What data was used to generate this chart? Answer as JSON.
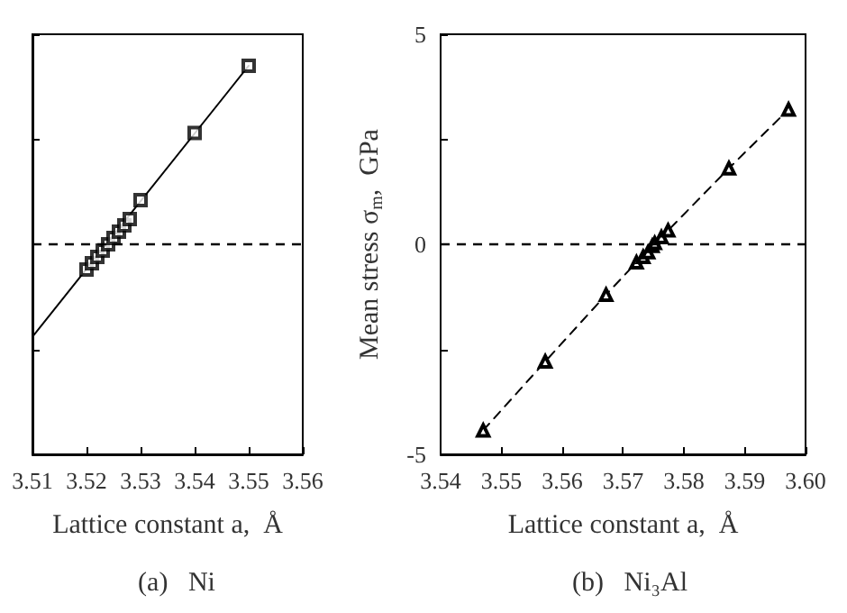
{
  "chart_data": [
    {
      "type": "line",
      "title": "(a)   Ni",
      "xlabel": "Lattice constant a,  Å",
      "xlim": [
        3.51,
        3.56
      ],
      "xticks": [
        3.51,
        3.52,
        3.53,
        3.54,
        3.55,
        3.56
      ],
      "ylim": [
        -5,
        5
      ],
      "yticks": [
        {
          "value": -5,
          "label": null
        },
        {
          "value": -2.5,
          "label": null
        },
        {
          "value": 0,
          "label": null
        },
        {
          "value": 2.5,
          "label": null
        },
        {
          "value": 5,
          "label": null
        }
      ],
      "tick_labels": "x",
      "grid": false,
      "ref_lines": [
        {
          "axis": "y",
          "value": 0,
          "line_style": "dashed",
          "color": "#000000"
        }
      ],
      "series": [
        {
          "type": "line",
          "marker": "none",
          "line_style": "solid",
          "color": "#000000",
          "x": [
            3.51,
            3.55
          ],
          "values": [
            -2.2,
            4.25
          ]
        },
        {
          "type": "scatter",
          "marker": "square",
          "color": "#000000",
          "x": [
            3.52,
            3.521,
            3.522,
            3.523,
            3.524,
            3.525,
            3.526,
            3.527,
            3.528,
            3.53,
            3.54,
            3.55
          ],
          "values": [
            -0.6,
            -0.45,
            -0.3,
            -0.15,
            0,
            0.15,
            0.3,
            0.45,
            0.6,
            1.05,
            2.65,
            4.25
          ]
        }
      ]
    },
    {
      "type": "line",
      "title": "(b)   Ni₃Al",
      "xlabel": "Lattice constant a,  Å",
      "ylabel": "Mean stress σ$_{m}$,  GPa",
      "xlim": [
        3.54,
        3.6
      ],
      "xticks": [
        3.54,
        3.55,
        3.56,
        3.57,
        3.58,
        3.59,
        {
          "value": 3.6,
          "label": "3.60"
        }
      ],
      "ylim": [
        -5,
        5
      ],
      "yticks": [
        -5,
        {
          "value": -2.5,
          "label": null
        },
        0,
        {
          "value": 2.5,
          "label": null
        },
        5
      ],
      "grid": false,
      "ref_lines": [
        {
          "axis": "y",
          "value": 0,
          "line_style": "dashed",
          "color": "#000000"
        }
      ],
      "series": [
        {
          "type": "line",
          "marker": "triangle",
          "line_style": "dashed",
          "color": "#000000",
          "x": [
            3.547,
            3.5572,
            3.5672,
            3.5722,
            3.5733,
            3.5741,
            3.5748,
            3.5752,
            3.5763,
            3.5774,
            3.5874,
            3.5972
          ],
          "values": [
            -4.43,
            -2.79,
            -1.2,
            -0.43,
            -0.3,
            -0.19,
            -0.04,
            0.03,
            0.17,
            0.33,
            1.81,
            3.21
          ]
        }
      ]
    }
  ]
}
